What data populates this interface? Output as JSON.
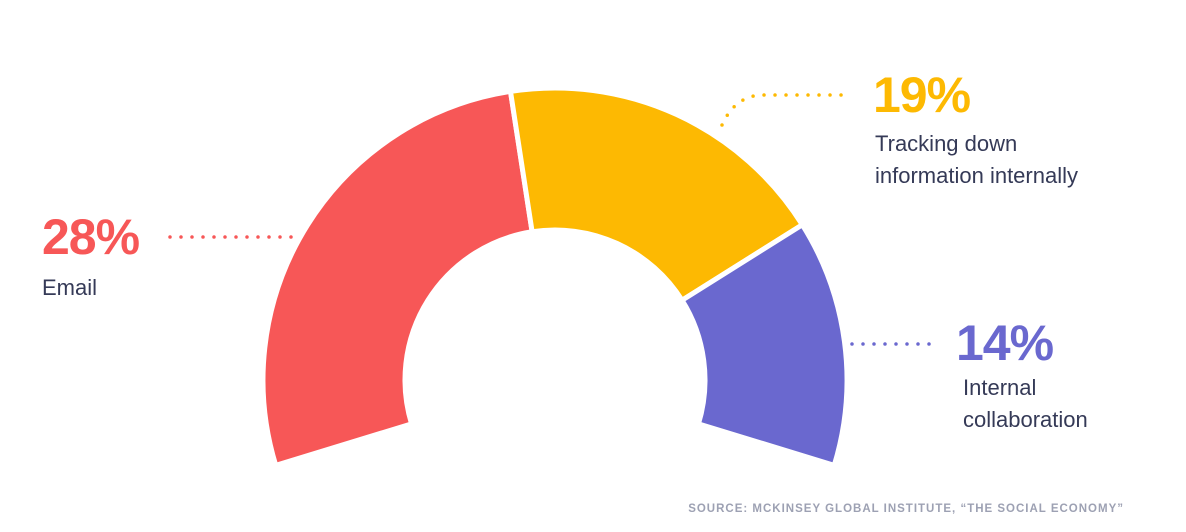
{
  "chart_data": {
    "type": "pie",
    "categories": [
      "Email",
      "Tracking down information internally",
      "Internal collaboration"
    ],
    "values": [
      28,
      19,
      14
    ],
    "value_labels": [
      "28%",
      "19%",
      "14%"
    ],
    "colors": [
      "#f75757",
      "#fdb902",
      "#6a68cf"
    ],
    "source": "SOURCE: MCKINSEY GLOBAL INSTITUTE, “THE SOCIAL ECONOMY”"
  }
}
